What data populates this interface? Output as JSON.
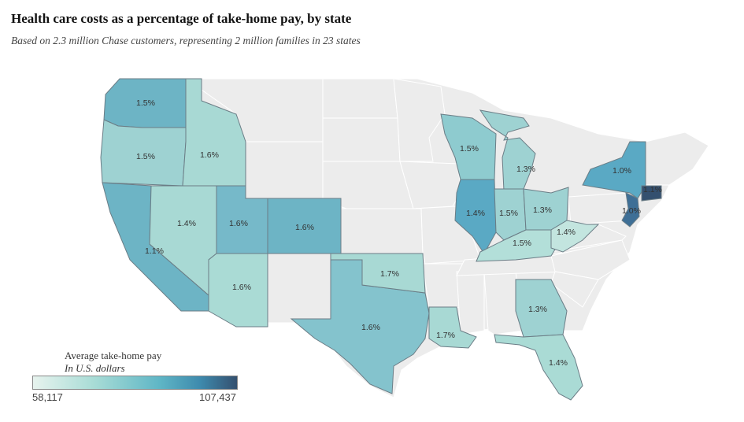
{
  "title": "Health care costs as a percentage of take-home pay, by state",
  "subtitle": "Based on 2.3 million Chase customers, representing 2 million families in 23 states",
  "legend": {
    "title": "Average take-home pay",
    "subtitle": "In U.S. dollars",
    "min_label": "58,117",
    "max_label": "107,437",
    "min": 58117,
    "max": 107437,
    "colors": [
      "#e7f3ee",
      "#a8dcd6",
      "#5fb6c6",
      "#3e8aad",
      "#34506f"
    ]
  },
  "states": [
    {
      "id": "WA",
      "label": "1.5%",
      "color": "#6db4c5"
    },
    {
      "id": "OR",
      "label": "1.5%",
      "color": "#9ed2d2"
    },
    {
      "id": "CA",
      "label": "1.1%",
      "color": "#6db4c5"
    },
    {
      "id": "ID",
      "label": "1.6%",
      "color": "#a8d9d4"
    },
    {
      "id": "NV",
      "label": "1.4%",
      "color": "#a8d9d4"
    },
    {
      "id": "UT",
      "label": "1.6%",
      "color": "#76b9c9"
    },
    {
      "id": "AZ",
      "label": "1.6%",
      "color": "#aadbd5"
    },
    {
      "id": "CO",
      "label": "1.6%",
      "color": "#6db4c5"
    },
    {
      "id": "TX",
      "label": "1.6%",
      "color": "#84c3cd"
    },
    {
      "id": "OK",
      "label": "1.7%",
      "color": "#a8d9d4"
    },
    {
      "id": "LA",
      "label": "1.7%",
      "color": "#a8d9d4"
    },
    {
      "id": "WI",
      "label": "1.5%",
      "color": "#8ecbcf"
    },
    {
      "id": "MI",
      "label": "1.3%",
      "color": "#9ed2d2"
    },
    {
      "id": "IL",
      "label": "1.4%",
      "color": "#5aa9c4"
    },
    {
      "id": "IN",
      "label": "1.5%",
      "color": "#9ed2d2"
    },
    {
      "id": "OH",
      "label": "1.3%",
      "color": "#9ed2d2"
    },
    {
      "id": "KY",
      "label": "1.5%",
      "color": "#b3dfd9"
    },
    {
      "id": "WV",
      "label": "1.4%",
      "color": "#c3e5df"
    },
    {
      "id": "NY",
      "label": "1.0%",
      "color": "#5aa9c4"
    },
    {
      "id": "NJ",
      "label": "1.0%",
      "color": "#3e6f96"
    },
    {
      "id": "CT",
      "label": "1.1%",
      "color": "#34506f"
    },
    {
      "id": "GA",
      "label": "1.3%",
      "color": "#9ed2d2"
    },
    {
      "id": "FL",
      "label": "1.4%",
      "color": "#aadbd5"
    }
  ]
}
